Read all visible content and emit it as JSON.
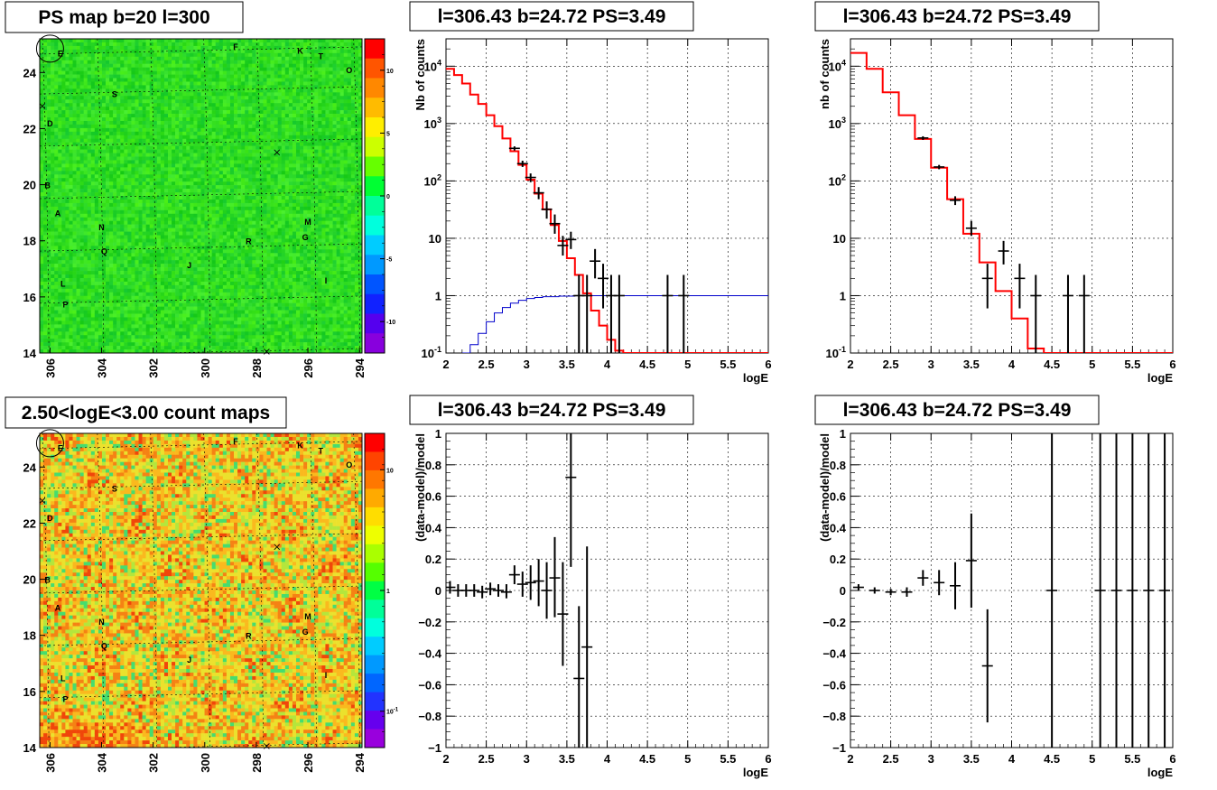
{
  "colors": {
    "model_red": "#ff0000",
    "acceptance_blue": "#0000cc",
    "data_black": "#000000"
  },
  "chart_data": [
    {
      "id": "ps_map",
      "type": "heatmap",
      "title": "PS map b=20 l=300",
      "x_ticks": [
        "306",
        "304",
        "302",
        "300",
        "298",
        "296",
        "294"
      ],
      "y_ticks": [
        "14",
        "16",
        "18",
        "20",
        "22",
        "24"
      ],
      "xlim": [
        306.4,
        293.9
      ],
      "ylim": [
        14,
        25.2
      ],
      "z_ticks": [
        "10",
        "5",
        "0",
        "-5",
        "-10"
      ],
      "zlim": [
        -12.5,
        12.5
      ],
      "background_level": 0,
      "source_labels": [
        {
          "text": "E",
          "l": 305.6,
          "b": 24.7
        },
        {
          "text": "F",
          "l": 298.8,
          "b": 24.95
        },
        {
          "text": "K",
          "l": 296.3,
          "b": 24.8
        },
        {
          "text": "T",
          "l": 295.5,
          "b": 24.6
        },
        {
          "text": "O",
          "l": 294.4,
          "b": 24.1
        },
        {
          "text": "S",
          "l": 303.5,
          "b": 23.25
        },
        {
          "text": "D",
          "l": 306.0,
          "b": 22.2
        },
        {
          "text": "B",
          "l": 306.1,
          "b": 20.0
        },
        {
          "text": "A",
          "l": 305.7,
          "b": 19.0
        },
        {
          "text": "N",
          "l": 304.0,
          "b": 18.5
        },
        {
          "text": "M",
          "l": 296.0,
          "b": 18.7
        },
        {
          "text": "R",
          "l": 298.3,
          "b": 18.0
        },
        {
          "text": "G",
          "l": 296.1,
          "b": 18.15
        },
        {
          "text": "Q",
          "l": 303.9,
          "b": 17.65
        },
        {
          "text": "J",
          "l": 300.6,
          "b": 17.15
        },
        {
          "text": "I",
          "l": 295.3,
          "b": 16.6
        },
        {
          "text": "L",
          "l": 305.5,
          "b": 16.5
        },
        {
          "text": "P",
          "l": 305.4,
          "b": 15.75
        }
      ],
      "markers": [
        {
          "l": 297.2,
          "b": 21.15
        },
        {
          "l": 306.3,
          "b": 22.8
        },
        {
          "l": 297.6,
          "b": 14.05
        }
      ],
      "circle": {
        "l": 306.0,
        "b": 24.85
      }
    },
    {
      "id": "count_map",
      "type": "heatmap",
      "title": "2.50<logE<3.00 count maps",
      "x_ticks": [
        "306",
        "304",
        "302",
        "300",
        "298",
        "296",
        "294"
      ],
      "y_ticks": [
        "14",
        "16",
        "18",
        "20",
        "22",
        "24"
      ],
      "xlim": [
        306.4,
        293.9
      ],
      "ylim": [
        14,
        25.2
      ],
      "z_ticks": [
        "10",
        "1",
        "10^-1"
      ],
      "zlim_log": [
        0.05,
        20
      ],
      "background_level": 1.2
    },
    {
      "id": "spectrum_left",
      "type": "line",
      "title": "l=306.43 b=24.72 PS=3.49",
      "xlabel": "logE",
      "ylabel": "Nb of counts",
      "xlim": [
        2,
        6
      ],
      "ylim": [
        0.1,
        30000
      ],
      "y_scale": "log",
      "x_ticks": [
        "2",
        "2.5",
        "3",
        "3.5",
        "4",
        "4.5",
        "5",
        "5.5",
        "6"
      ],
      "y_ticks": [
        "10^-1",
        "1",
        "10",
        "10^2",
        "10^3",
        "10^4"
      ],
      "model": [
        {
          "x0": 2.0,
          "x1": 2.1,
          "y": 9000
        },
        {
          "x0": 2.1,
          "x1": 2.2,
          "y": 7000
        },
        {
          "x0": 2.2,
          "x1": 2.3,
          "y": 5000
        },
        {
          "x0": 2.3,
          "x1": 2.4,
          "y": 3200
        },
        {
          "x0": 2.4,
          "x1": 2.5,
          "y": 2200
        },
        {
          "x0": 2.5,
          "x1": 2.6,
          "y": 1400
        },
        {
          "x0": 2.6,
          "x1": 2.7,
          "y": 900
        },
        {
          "x0": 2.7,
          "x1": 2.8,
          "y": 550
        },
        {
          "x0": 2.8,
          "x1": 2.9,
          "y": 330
        },
        {
          "x0": 2.9,
          "x1": 3.0,
          "y": 190
        },
        {
          "x0": 3.0,
          "x1": 3.1,
          "y": 105
        },
        {
          "x0": 3.1,
          "x1": 3.2,
          "y": 60
        },
        {
          "x0": 3.2,
          "x1": 3.3,
          "y": 32
        },
        {
          "x0": 3.3,
          "x1": 3.4,
          "y": 17
        },
        {
          "x0": 3.4,
          "x1": 3.5,
          "y": 9
        },
        {
          "x0": 3.5,
          "x1": 3.6,
          "y": 4.5
        },
        {
          "x0": 3.6,
          "x1": 3.7,
          "y": 2.3
        },
        {
          "x0": 3.7,
          "x1": 3.8,
          "y": 1.1
        },
        {
          "x0": 3.8,
          "x1": 3.9,
          "y": 0.55
        },
        {
          "x0": 3.9,
          "x1": 4.0,
          "y": 0.3
        },
        {
          "x0": 4.0,
          "x1": 4.1,
          "y": 0.17
        },
        {
          "x0": 4.1,
          "x1": 4.2,
          "y": 0.11
        },
        {
          "x0": 4.2,
          "x1": 6.0,
          "y": 0.1
        }
      ],
      "acceptance": [
        {
          "x0": 2.2,
          "x1": 2.3,
          "y": 0.1
        },
        {
          "x0": 2.3,
          "x1": 2.4,
          "y": 0.14
        },
        {
          "x0": 2.4,
          "x1": 2.5,
          "y": 0.22
        },
        {
          "x0": 2.5,
          "x1": 2.6,
          "y": 0.35
        },
        {
          "x0": 2.6,
          "x1": 2.7,
          "y": 0.5
        },
        {
          "x0": 2.7,
          "x1": 2.8,
          "y": 0.62
        },
        {
          "x0": 2.8,
          "x1": 2.9,
          "y": 0.74
        },
        {
          "x0": 2.9,
          "x1": 3.0,
          "y": 0.83
        },
        {
          "x0": 3.0,
          "x1": 3.1,
          "y": 0.89
        },
        {
          "x0": 3.1,
          "x1": 3.2,
          "y": 0.93
        },
        {
          "x0": 3.2,
          "x1": 3.4,
          "y": 0.96
        },
        {
          "x0": 3.4,
          "x1": 3.6,
          "y": 0.98
        },
        {
          "x0": 3.6,
          "x1": 6.0,
          "y": 1.0
        }
      ],
      "points": [
        {
          "x": 2.85,
          "y": 370,
          "lo": 340,
          "hi": 400
        },
        {
          "x": 2.95,
          "y": 200,
          "lo": 175,
          "hi": 225
        },
        {
          "x": 3.05,
          "y": 115,
          "lo": 95,
          "hi": 135
        },
        {
          "x": 3.15,
          "y": 62,
          "lo": 48,
          "hi": 78
        },
        {
          "x": 3.25,
          "y": 32,
          "lo": 22,
          "hi": 44
        },
        {
          "x": 3.35,
          "y": 18,
          "lo": 12,
          "hi": 26
        },
        {
          "x": 3.45,
          "y": 7.5,
          "lo": 5,
          "hi": 11
        },
        {
          "x": 3.55,
          "y": 9.5,
          "lo": 6.5,
          "hi": 13
        },
        {
          "x": 3.65,
          "y": 1,
          "lo": 0.1,
          "hi": 2.3
        },
        {
          "x": 3.75,
          "y": 1,
          "lo": 0.1,
          "hi": 2.3
        },
        {
          "x": 3.85,
          "y": 4,
          "lo": 2,
          "hi": 6.5
        },
        {
          "x": 3.95,
          "y": 2,
          "lo": 0.6,
          "hi": 3.6
        },
        {
          "x": 4.05,
          "y": 1,
          "lo": 0.1,
          "hi": 2.3
        },
        {
          "x": 4.15,
          "y": 1,
          "lo": 0.1,
          "hi": 2.3
        },
        {
          "x": 4.75,
          "y": 1,
          "lo": 0.1,
          "hi": 2.3
        },
        {
          "x": 4.95,
          "y": 1,
          "lo": 0.1,
          "hi": 2.3
        }
      ]
    },
    {
      "id": "spectrum_right",
      "type": "line",
      "title": "l=306.43 b=24.72 PS=3.49",
      "xlabel": "logE",
      "ylabel": "nb of counts",
      "xlim": [
        2,
        6
      ],
      "ylim": [
        0.1,
        30000
      ],
      "y_scale": "log",
      "x_ticks": [
        "2",
        "2.5",
        "3",
        "3.5",
        "4",
        "4.5",
        "5",
        "5.5",
        "6"
      ],
      "y_ticks": [
        "10^-1",
        "1",
        "10",
        "10^2",
        "10^3",
        "10^4"
      ],
      "model": [
        {
          "x0": 2.0,
          "x1": 2.2,
          "y": 17000
        },
        {
          "x0": 2.2,
          "x1": 2.4,
          "y": 9000
        },
        {
          "x0": 2.4,
          "x1": 2.6,
          "y": 3500
        },
        {
          "x0": 2.6,
          "x1": 2.8,
          "y": 1400
        },
        {
          "x0": 2.8,
          "x1": 3.0,
          "y": 540
        },
        {
          "x0": 3.0,
          "x1": 3.2,
          "y": 170
        },
        {
          "x0": 3.2,
          "x1": 3.4,
          "y": 48
        },
        {
          "x0": 3.4,
          "x1": 3.6,
          "y": 12
        },
        {
          "x0": 3.6,
          "x1": 3.8,
          "y": 3.8
        },
        {
          "x0": 3.8,
          "x1": 4.0,
          "y": 1.2
        },
        {
          "x0": 4.0,
          "x1": 4.2,
          "y": 0.4
        },
        {
          "x0": 4.2,
          "x1": 4.4,
          "y": 0.12
        },
        {
          "x0": 4.4,
          "x1": 6.0,
          "y": 0.1
        }
      ],
      "points": [
        {
          "x": 2.9,
          "y": 560,
          "lo": 520,
          "hi": 600
        },
        {
          "x": 3.1,
          "y": 175,
          "lo": 160,
          "hi": 190
        },
        {
          "x": 3.3,
          "y": 46,
          "lo": 38,
          "hi": 54
        },
        {
          "x": 3.5,
          "y": 15,
          "lo": 11,
          "hi": 20
        },
        {
          "x": 3.7,
          "y": 2,
          "lo": 0.6,
          "hi": 3.6
        },
        {
          "x": 3.9,
          "y": 6,
          "lo": 3.5,
          "hi": 9
        },
        {
          "x": 4.1,
          "y": 2,
          "lo": 0.6,
          "hi": 3.6
        },
        {
          "x": 4.3,
          "y": 1,
          "lo": 0.1,
          "hi": 2.3
        },
        {
          "x": 4.7,
          "y": 1,
          "lo": 0.1,
          "hi": 2.3
        },
        {
          "x": 4.9,
          "y": 1,
          "lo": 0.1,
          "hi": 2.3
        }
      ]
    },
    {
      "id": "residual_left",
      "type": "scatter",
      "title": "l=306.43 b=24.72 PS=3.49",
      "xlabel": "logE",
      "ylabel": "(data-model)/model",
      "xlim": [
        2,
        6
      ],
      "ylim": [
        -1,
        1
      ],
      "x_ticks": [
        "2",
        "2.5",
        "3",
        "3.5",
        "4",
        "4.5",
        "5",
        "5.5",
        "6"
      ],
      "y_ticks": [
        "−1",
        "−0.8",
        "−0.6",
        "−0.4",
        "−0.2",
        "0",
        "0.2",
        "0.4",
        "0.6",
        "0.8",
        "1"
      ],
      "points": [
        {
          "x": 2.05,
          "y": 0.02,
          "lo": -0.02,
          "hi": 0.06
        },
        {
          "x": 2.15,
          "y": 0.0,
          "lo": -0.04,
          "hi": 0.04
        },
        {
          "x": 2.25,
          "y": 0.0,
          "lo": -0.04,
          "hi": 0.04
        },
        {
          "x": 2.35,
          "y": 0.0,
          "lo": -0.04,
          "hi": 0.04
        },
        {
          "x": 2.45,
          "y": -0.01,
          "lo": -0.05,
          "hi": 0.03
        },
        {
          "x": 2.55,
          "y": 0.01,
          "lo": -0.03,
          "hi": 0.05
        },
        {
          "x": 2.65,
          "y": 0.0,
          "lo": -0.04,
          "hi": 0.04
        },
        {
          "x": 2.75,
          "y": -0.01,
          "lo": -0.05,
          "hi": 0.04
        },
        {
          "x": 2.85,
          "y": 0.1,
          "lo": 0.04,
          "hi": 0.16
        },
        {
          "x": 2.95,
          "y": 0.04,
          "lo": -0.04,
          "hi": 0.12
        },
        {
          "x": 3.05,
          "y": 0.05,
          "lo": -0.06,
          "hi": 0.16
        },
        {
          "x": 3.15,
          "y": 0.06,
          "lo": -0.1,
          "hi": 0.2
        },
        {
          "x": 3.25,
          "y": 0.0,
          "lo": -0.18,
          "hi": 0.18
        },
        {
          "x": 3.35,
          "y": 0.08,
          "lo": -0.17,
          "hi": 0.34
        },
        {
          "x": 3.45,
          "y": -0.15,
          "lo": -0.48,
          "hi": 0.18
        },
        {
          "x": 3.55,
          "y": 0.72,
          "lo": 0.15,
          "hi": 1.0
        },
        {
          "x": 3.65,
          "y": -0.56,
          "lo": -1.0,
          "hi": -0.1
        },
        {
          "x": 3.75,
          "y": -0.36,
          "lo": -1.0,
          "hi": 0.28
        }
      ]
    },
    {
      "id": "residual_right",
      "type": "scatter",
      "title": "l=306.43 b=24.72 PS=3.49",
      "xlabel": "logE",
      "ylabel": "(data-model)/model",
      "xlim": [
        2,
        6
      ],
      "ylim": [
        -1,
        1
      ],
      "x_ticks": [
        "2",
        "2.5",
        "3",
        "3.5",
        "4",
        "4.5",
        "5",
        "5.5",
        "6"
      ],
      "y_ticks": [
        "−1",
        "−0.8",
        "−0.6",
        "−0.4",
        "−0.2",
        "0",
        "0.2",
        "0.4",
        "0.6",
        "0.8",
        "1"
      ],
      "points": [
        {
          "x": 2.1,
          "y": 0.02,
          "lo": 0.0,
          "hi": 0.04
        },
        {
          "x": 2.3,
          "y": 0.0,
          "lo": -0.02,
          "hi": 0.02
        },
        {
          "x": 2.5,
          "y": -0.01,
          "lo": -0.03,
          "hi": 0.01
        },
        {
          "x": 2.7,
          "y": -0.01,
          "lo": -0.04,
          "hi": 0.02
        },
        {
          "x": 2.9,
          "y": 0.08,
          "lo": 0.03,
          "hi": 0.13
        },
        {
          "x": 3.1,
          "y": 0.05,
          "lo": -0.03,
          "hi": 0.13
        },
        {
          "x": 3.3,
          "y": 0.03,
          "lo": -0.12,
          "hi": 0.18
        },
        {
          "x": 3.5,
          "y": 0.19,
          "lo": -0.11,
          "hi": 0.49
        },
        {
          "x": 3.7,
          "y": -0.48,
          "lo": -0.84,
          "hi": -0.12
        },
        {
          "x": 4.5,
          "y": 0,
          "lo": -1.0,
          "hi": 1.0
        },
        {
          "x": 5.1,
          "y": 0,
          "lo": -1.0,
          "hi": 1.0
        },
        {
          "x": 5.3,
          "y": 0,
          "lo": -1.0,
          "hi": 1.0
        },
        {
          "x": 5.5,
          "y": 0,
          "lo": -1.0,
          "hi": 1.0
        },
        {
          "x": 5.7,
          "y": 0,
          "lo": -1.0,
          "hi": 1.0
        },
        {
          "x": 5.9,
          "y": 0,
          "lo": -1.0,
          "hi": 1.0
        }
      ]
    }
  ]
}
